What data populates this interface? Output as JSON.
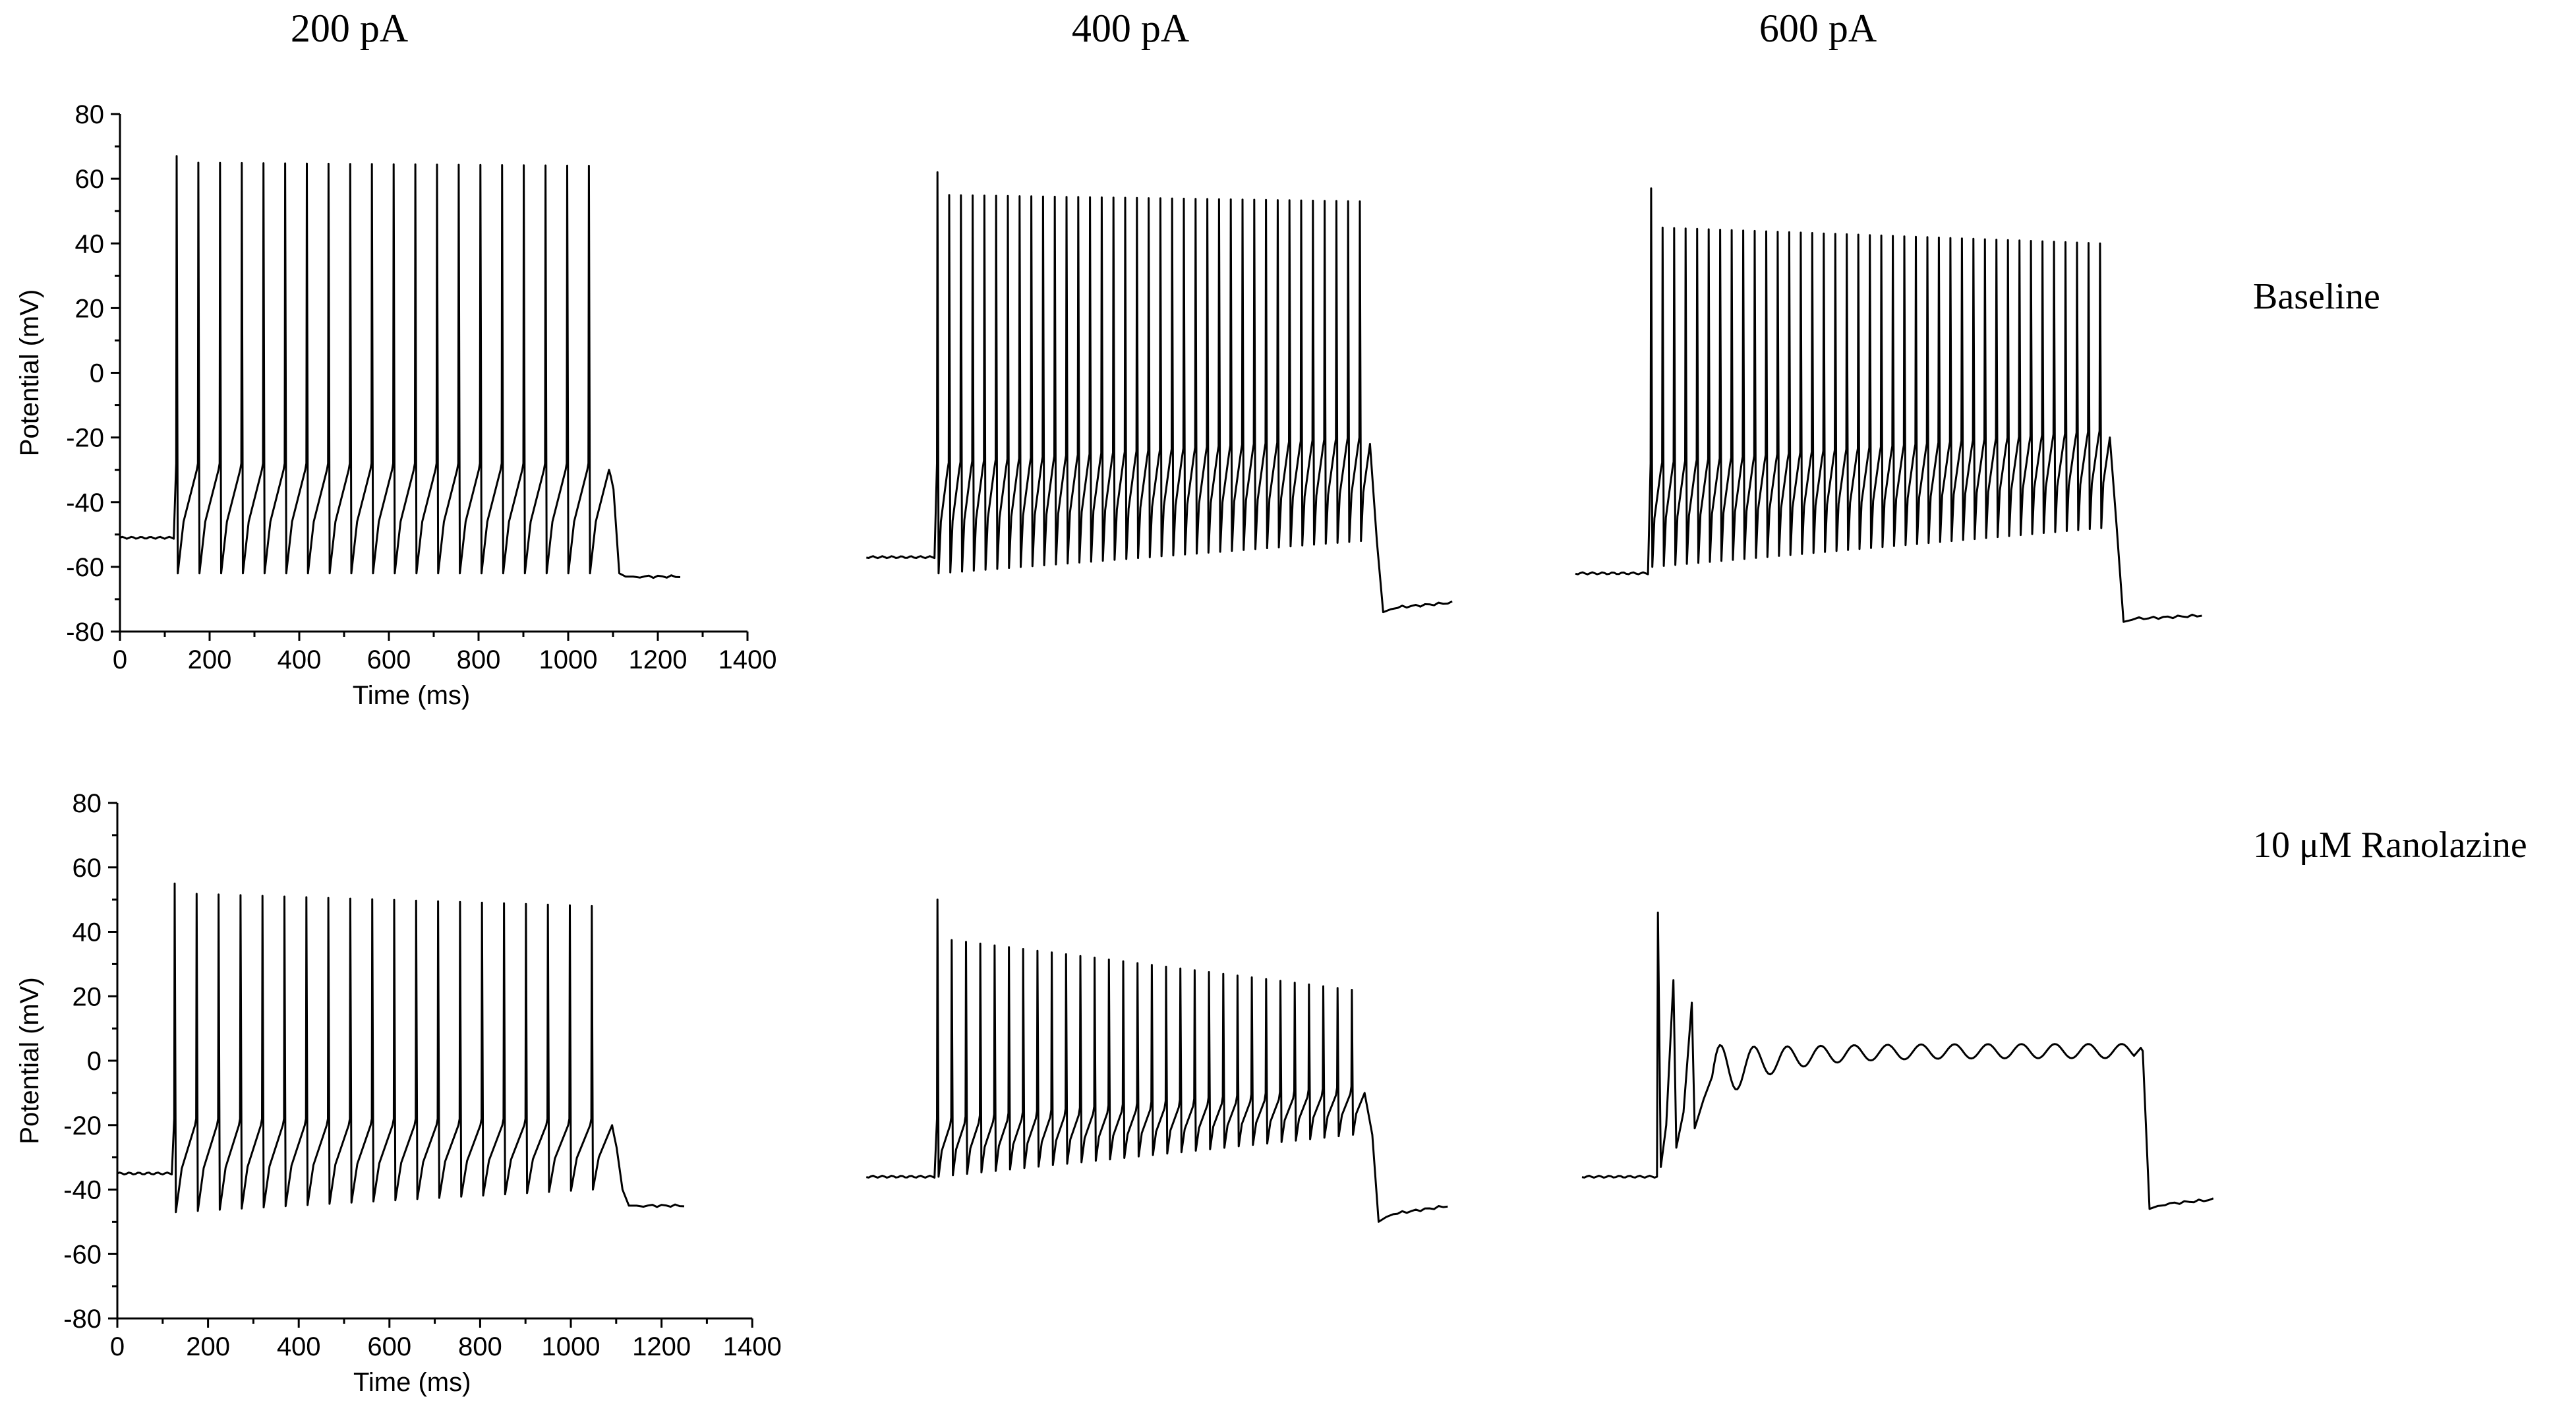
{
  "column_labels": [
    "200 pA",
    "400 pA",
    "600 pA"
  ],
  "row_labels": [
    "Baseline",
    "10 μM Ranolazine"
  ],
  "chart_data": [
    {
      "type": "line",
      "current": "200 pA",
      "condition": "Baseline",
      "xlabel": "Time (ms)",
      "ylabel": "Potential (mV)",
      "xlim": [
        0,
        1400
      ],
      "ylim": [
        -80,
        80
      ],
      "xticks": [
        "0",
        "200",
        "400",
        "600",
        "800",
        "1000",
        "1200",
        "1400"
      ],
      "yticks": [
        "80",
        "60",
        "40",
        "20",
        "0",
        "-20",
        "-40",
        "-60",
        "-80"
      ],
      "show_axes": true,
      "trace": {
        "t0": 0,
        "t_on": 125,
        "t_off": 1110,
        "t_end": 1255,
        "rest_mV": -51,
        "spike_count": 20,
        "first_peak_mV": 67,
        "peak_mV": 65,
        "last_peak_mV": 64,
        "trough_mV": -62,
        "threshold_mV": -30,
        "final_mV": -63,
        "tail_bump_mV": -32,
        "settled": true
      }
    },
    {
      "type": "line",
      "current": "400 pA",
      "condition": "Baseline",
      "show_axes": false,
      "xlim": [
        0,
        1400
      ],
      "ylim": [
        -80,
        80
      ],
      "trace": {
        "t0": -30,
        "t_on": 125,
        "t_off": 1090,
        "t_end": 1265,
        "rest_mV": -57,
        "spike_count": 37,
        "first_peak_mV": 62,
        "peak_mV": 55,
        "last_peak_mV": 53,
        "trough_mV": -62,
        "trough_end_mV": -52,
        "threshold_mV": -30,
        "threshold_end_mV": -22,
        "final_mV": -71,
        "undershoot_mV": -74,
        "settled": true
      }
    },
    {
      "type": "line",
      "current": "600 pA",
      "condition": "Baseline",
      "show_axes": false,
      "xlim": [
        0,
        1400
      ],
      "ylim": [
        -80,
        80
      ],
      "trace": {
        "t0": -30,
        "t_on": 125,
        "t_off": 1085,
        "t_end": 1270,
        "rest_mV": -62,
        "spike_count": 40,
        "first_peak_mV": 57,
        "peak_mV": 45,
        "last_peak_mV": 40,
        "trough_mV": -60,
        "trough_end_mV": -48,
        "threshold_mV": -30,
        "threshold_end_mV": -20,
        "final_mV": -75,
        "undershoot_mV": -77,
        "settled": true
      }
    },
    {
      "type": "line",
      "current": "200 pA",
      "condition": "10 μM Ranolazine",
      "xlabel": "Time (ms)",
      "ylabel": "Potential (mV)",
      "xlim": [
        0,
        1400
      ],
      "ylim": [
        -80,
        80
      ],
      "xticks": [
        "0",
        "200",
        "400",
        "600",
        "800",
        "1000",
        "1200",
        "1400"
      ],
      "yticks": [
        "80",
        "60",
        "40",
        "20",
        "0",
        "-20",
        "-40",
        "-60",
        "-80"
      ],
      "show_axes": true,
      "trace": {
        "t0": 0,
        "t_on": 125,
        "t_off": 1110,
        "t_end": 1255,
        "rest_mV": -35,
        "spike_count": 20,
        "first_peak_mV": 55,
        "peak_mV": 52,
        "last_peak_mV": 48,
        "trough_mV": -47,
        "trough_end_mV": -40,
        "threshold_mV": -20,
        "final_mV": -45,
        "tail_bump_mV": -23,
        "settled": true
      }
    },
    {
      "type": "line",
      "current": "400 pA",
      "condition": "10 μM Ranolazine",
      "show_axes": false,
      "xlim": [
        0,
        1400
      ],
      "ylim": [
        -80,
        80
      ],
      "trace": {
        "t0": -30,
        "t_on": 125,
        "t_off": 1080,
        "t_end": 1255,
        "rest_mV": -36,
        "spike_count": 30,
        "first_peak_mV": 50,
        "peak_mV": 38,
        "last_peak_mV": 22,
        "trough_mV": -36,
        "trough_end_mV": -23,
        "threshold_mV": -20,
        "threshold_end_mV": -10,
        "final_mV": -45,
        "undershoot_mV": -50,
        "settled": true
      }
    },
    {
      "type": "line",
      "current": "600 pA",
      "condition": "10 μM Ranolazine",
      "show_axes": false,
      "xlim": [
        0,
        1400
      ],
      "ylim": [
        -80,
        80
      ],
      "trace": {
        "t0": -30,
        "t_on": 125,
        "t_off": 1125,
        "t_end": 1280,
        "rest_mV": -36,
        "spike_count": 3,
        "first_peak_mV": 46,
        "peak_mV": 25,
        "last_peak_mV": 18,
        "trough_mV": -33,
        "threshold_mV": -20,
        "plateau_mV": 3,
        "final_mV": -43,
        "undershoot_mV": -46,
        "settled": true
      }
    }
  ]
}
